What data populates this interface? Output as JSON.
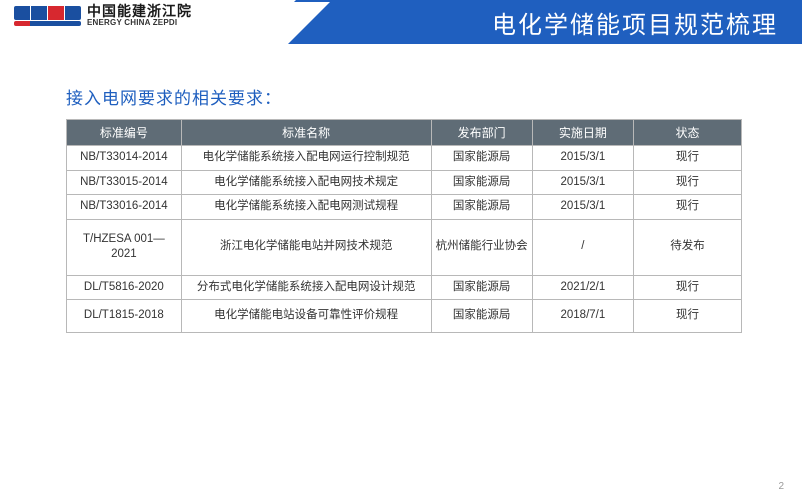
{
  "brand": {
    "name_cn": "中国能建浙江院",
    "name_en": "ENERGY CHINA ZEPDI"
  },
  "slide": {
    "title": "电化学储能项目规范梳理",
    "page_number": "2"
  },
  "section": {
    "heading": "接入电网要求的相关要求："
  },
  "table": {
    "columns": [
      "标准编号",
      "标准名称",
      "发布部门",
      "实施日期",
      "状态"
    ],
    "rows": [
      {
        "code": "NB/T33014-2014",
        "name": "电化学储能系统接入配电网运行控制规范",
        "dept": "国家能源局",
        "date": "2015/3/1",
        "status": "现行",
        "h": ""
      },
      {
        "code": "NB/T33015-2014",
        "name": "电化学储能系统接入配电网技术规定",
        "dept": "国家能源局",
        "date": "2015/3/1",
        "status": "现行",
        "h": ""
      },
      {
        "code": "NB/T33016-2014",
        "name": "电化学储能系统接入配电网测试规程",
        "dept": "国家能源局",
        "date": "2015/3/1",
        "status": "现行",
        "h": ""
      },
      {
        "code": "T/HZESA 001—2021",
        "name": "浙江电化学储能电站并网技术规范",
        "dept": "杭州储能行业协会",
        "date": "/",
        "status": "待发布",
        "h": "tall"
      },
      {
        "code": "DL/T5816-2020",
        "name": "分布式电化学储能系统接入配电网设计规范",
        "dept": "国家能源局",
        "date": "2021/2/1",
        "status": "现行",
        "h": ""
      },
      {
        "code": "DL/T1815-2018",
        "name": "电化学储能电站设备可靠性评价规程",
        "dept": "国家能源局",
        "date": "2018/7/1",
        "status": "现行",
        "h": "med"
      }
    ]
  },
  "style": {
    "accent": "#1f5fbf",
    "header_row_bg": "#5f6c76",
    "border": "#b8b8b8",
    "text": "#333333"
  }
}
